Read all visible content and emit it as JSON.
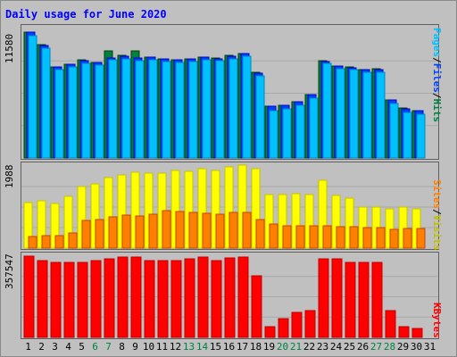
{
  "chart_data": {
    "type": "bar",
    "title": "Daily usage for June 2020",
    "days": [
      "1",
      "2",
      "3",
      "4",
      "5",
      "6",
      "7",
      "8",
      "9",
      "10",
      "11",
      "12",
      "13",
      "14",
      "15",
      "16",
      "17",
      "18",
      "19",
      "20",
      "21",
      "22",
      "23",
      "24",
      "25",
      "26",
      "27",
      "28",
      "29",
      "30",
      "31"
    ],
    "weekend_days": [
      "6",
      "7",
      "13",
      "14",
      "20",
      "21",
      "27",
      "28"
    ],
    "colors": {
      "hits": "#008040",
      "files": "#0040ff",
      "pages": "#00c0ff",
      "visits": "#ffff00",
      "sites": "#ff8000",
      "kbytes": "#ff0000",
      "weekday_label": "#000000",
      "weekend_label": "#008040"
    },
    "panels": [
      {
        "key": "hits",
        "y_max_label": "11580",
        "y_max": 11580,
        "legend": [
          "Pages",
          "Files",
          "Hits"
        ],
        "series": [
          {
            "name": "Hits",
            "color": "#008040",
            "values": [
              11280,
              10140,
              8160,
              8420,
              8750,
              8570,
              9600,
              9160,
              9580,
              9060,
              8880,
              8820,
              8900,
              9040,
              8940,
              9150,
              9380,
              7640,
              4660,
              4710,
              5060,
              5670,
              8720,
              8240,
              8130,
              7930,
              7960,
              5200,
              4440,
              4260,
              0
            ]
          },
          {
            "name": "Files",
            "color": "#0040ff",
            "values": [
              11240,
              10100,
              8130,
              8380,
              8710,
              8530,
              8980,
              9130,
              8960,
              9000,
              8850,
              8780,
              8880,
              9010,
              8900,
              9110,
              9340,
              7610,
              4600,
              4680,
              5020,
              5640,
              8660,
              8200,
              8090,
              7890,
              7920,
              5160,
              4400,
              4220,
              0
            ]
          },
          {
            "name": "Pages",
            "color": "#00c0ff",
            "values": [
              10950,
              9820,
              7900,
              8140,
              8460,
              8290,
              8760,
              8880,
              8720,
              8760,
              8640,
              8560,
              8660,
              8780,
              8680,
              8860,
              9080,
              7350,
              4230,
              4360,
              4700,
              5330,
              8440,
              7990,
              7880,
              7650,
              7690,
              4860,
              4040,
              3880,
              0
            ]
          }
        ]
      },
      {
        "key": "visits",
        "y_max_label": "1988",
        "y_max": 1988,
        "legend": [
          "Sites",
          "Visits"
        ],
        "series": [
          {
            "name": "Visits",
            "color": "#ffff00",
            "values": [
              1100,
              1150,
              1080,
              1250,
              1500,
              1560,
              1700,
              1780,
              1840,
              1820,
              1820,
              1880,
              1860,
              1920,
              1880,
              1960,
              2000,
              1920,
              1300,
              1300,
              1310,
              1300,
              1640,
              1280,
              1200,
              1000,
              1000,
              960,
              1000,
              940,
              0
            ]
          },
          {
            "name": "Sites",
            "color": "#ff8000",
            "values": [
              280,
              310,
              300,
              360,
              660,
              700,
              760,
              800,
              780,
              820,
              900,
              880,
              860,
              850,
              830,
              860,
              870,
              700,
              580,
              550,
              530,
              530,
              530,
              510,
              510,
              490,
              490,
              460,
              470,
              470,
              0
            ]
          }
        ]
      },
      {
        "key": "kbytes",
        "y_max_label": "357547",
        "y_max": 357547,
        "legend": [
          "KBytes"
        ],
        "series": [
          {
            "name": "KBytes",
            "color": "#ff0000",
            "values": [
              357547,
              337000,
              330000,
              330000,
              330000,
              337000,
              346000,
              355000,
              355000,
              339000,
              339000,
              339000,
              346000,
              353000,
              337000,
              349000,
              355000,
              271000,
              47000,
              83000,
              110000,
              117000,
              346000,
              346000,
              330000,
              330000,
              330000,
              117000,
              47000,
              40000,
              0
            ]
          }
        ]
      }
    ]
  }
}
